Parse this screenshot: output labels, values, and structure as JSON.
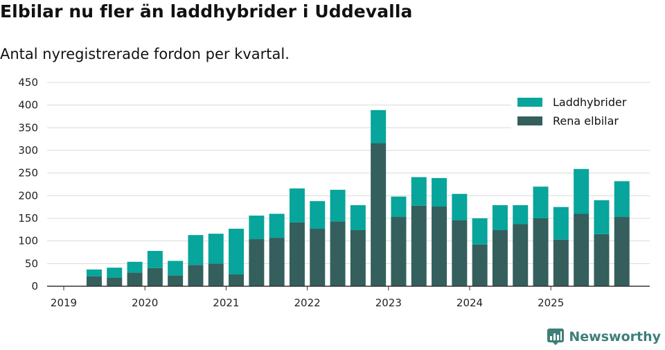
{
  "title": "Elbilar nu fler än laddhybrider i Uddevalla",
  "subtitle": "Antal nyregistrerade fordon per kvartal.",
  "brand": {
    "name": "Newsworthy",
    "icon": "newsworthy-logo-icon"
  },
  "colors": {
    "laddhybrider": "#07a59b",
    "rena_elbilar": "#345f5c",
    "grid": "#d9d9d9",
    "axis": "#333333"
  },
  "chart_data": {
    "type": "bar",
    "stacked": true,
    "title": "Elbilar nu fler än laddhybrider i Uddevalla",
    "subtitle": "Antal nyregistrerade fordon per kvartal.",
    "xlabel": "",
    "ylabel": "",
    "ylim": [
      0,
      450
    ],
    "yticks": [
      "0",
      "50",
      "100",
      "150",
      "200",
      "250",
      "300",
      "350",
      "400",
      "450"
    ],
    "xticks": [
      "2019",
      "2020",
      "2021",
      "2022",
      "2023",
      "2024",
      "2025"
    ],
    "categories": [
      "2019 Q2",
      "2019 Q3",
      "2019 Q4",
      "2020 Q1",
      "2020 Q2",
      "2020 Q3",
      "2020 Q4",
      "2021 Q1",
      "2021 Q2",
      "2021 Q3",
      "2021 Q4",
      "2022 Q1",
      "2022 Q2",
      "2022 Q3",
      "2022 Q4",
      "2023 Q1",
      "2023 Q2",
      "2023 Q3",
      "2023 Q4",
      "2024 Q1",
      "2024 Q2",
      "2024 Q3",
      "2024 Q4",
      "2025 Q1",
      "2025 Q2",
      "2025 Q3",
      "2025 Q4"
    ],
    "series": [
      {
        "name": "Rena elbilar",
        "values": [
          22,
          19,
          30,
          40,
          24,
          47,
          50,
          26,
          104,
          107,
          141,
          127,
          143,
          124,
          316,
          153,
          178,
          176,
          146,
          92,
          124,
          137,
          150,
          103,
          160,
          115,
          153
        ]
      },
      {
        "name": "Laddhybrider",
        "values": [
          15,
          22,
          24,
          38,
          32,
          66,
          66,
          101,
          52,
          53,
          75,
          61,
          70,
          55,
          73,
          45,
          63,
          63,
          58,
          58,
          55,
          42,
          70,
          72,
          99,
          75,
          79
        ]
      }
    ],
    "legend": [
      "Laddhybrider",
      "Rena elbilar"
    ],
    "legend_position": "top-right",
    "grid": true
  }
}
